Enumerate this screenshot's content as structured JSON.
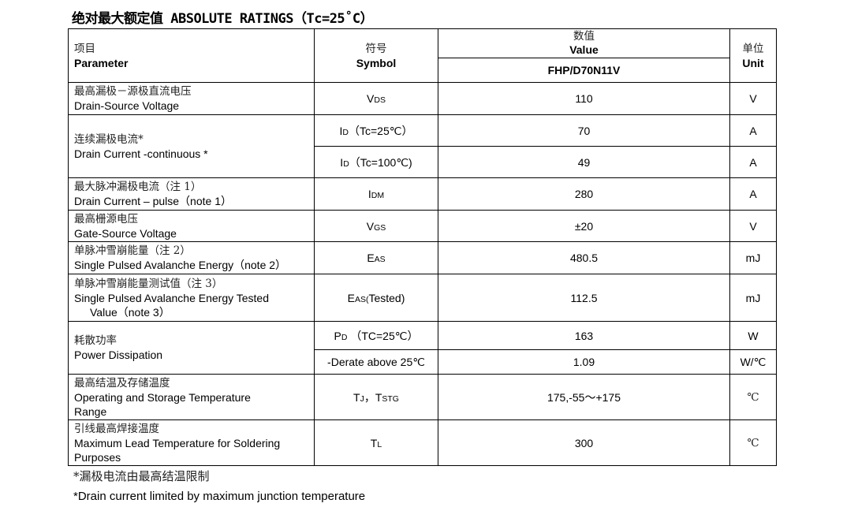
{
  "title": "绝对最大额定值 ABSOLUTE RATINGS（Tc=25˚C）",
  "header": {
    "param_zh": "项目",
    "param_en": "Parameter",
    "symbol_zh": "符号",
    "symbol_en": "Symbol",
    "value_zh": "数值",
    "value_en": "Value",
    "part": "FHP/D70N11V",
    "unit_zh": "单位",
    "unit_en": "Unit"
  },
  "rows": [
    {
      "zh": "最高漏极－源极直流电压",
      "en": "Drain-Source Voltage",
      "sym": "V",
      "sub": "DS",
      "suffix": "",
      "value": "110",
      "unit": "V"
    },
    {
      "zh": "连续漏极电流*",
      "en": "Drain Current -continuous *",
      "sym": "I",
      "sub": "D",
      "suffix": "（Tc=25℃）",
      "value": "70",
      "unit": "A"
    },
    {
      "sym": "I",
      "sub": "D",
      "suffix": "（Tc=100℃)",
      "value": "49",
      "unit": "A"
    },
    {
      "zh": "最大脉冲漏极电流（注 1）",
      "en": "Drain Current – pulse（note 1）",
      "sym": "I",
      "sub": "DM",
      "suffix": "",
      "value": "280",
      "unit": "A"
    },
    {
      "zh": "最高栅源电压",
      "en": "Gate-Source Voltage",
      "sym": "V",
      "sub": "GS",
      "suffix": "",
      "value": "±20",
      "unit": "V"
    },
    {
      "zh": "单脉冲雪崩能量（注 2）",
      "en": "Single Pulsed Avalanche Energy（note 2）",
      "sym": "E",
      "sub": "AS",
      "suffix": "",
      "value": "480.5",
      "unit": "mJ"
    },
    {
      "zh": "单脉冲雪崩能量测试值（注 3）",
      "en": "Single Pulsed Avalanche Energy Tested",
      "en2": "Value（note 3）",
      "sym": "E",
      "sub": "AS(",
      "suffix": "Tested)",
      "value": "112.5",
      "unit": "mJ"
    },
    {
      "zh": "耗散功率",
      "en": "Power Dissipation",
      "sym": "P",
      "sub": "D",
      "suffix": " （TC=25℃）",
      "value": "163",
      "unit": "W"
    },
    {
      "sym": "",
      "sub": "",
      "suffix": "-Derate above 25℃",
      "value": "1.09",
      "unit": "W/℃"
    },
    {
      "zh": "最高结温及存储温度",
      "en": "Operating and Storage Temperature",
      "en2": "Range",
      "sym": "T",
      "sub": "J",
      "suffix": "，T",
      "sub2": "STG",
      "value": "175,-55～+175",
      "unit": "℃"
    },
    {
      "zh": "引线最高焊接温度",
      "en": "Maximum Lead Temperature for Soldering",
      "en2": "Purposes",
      "sym": "T",
      "sub": "L",
      "suffix": "",
      "value": "300",
      "unit": "℃"
    }
  ],
  "footnotes": {
    "zh": "*漏极电流由最高结温限制",
    "en": "*Drain current limited by maximum junction temperature"
  }
}
